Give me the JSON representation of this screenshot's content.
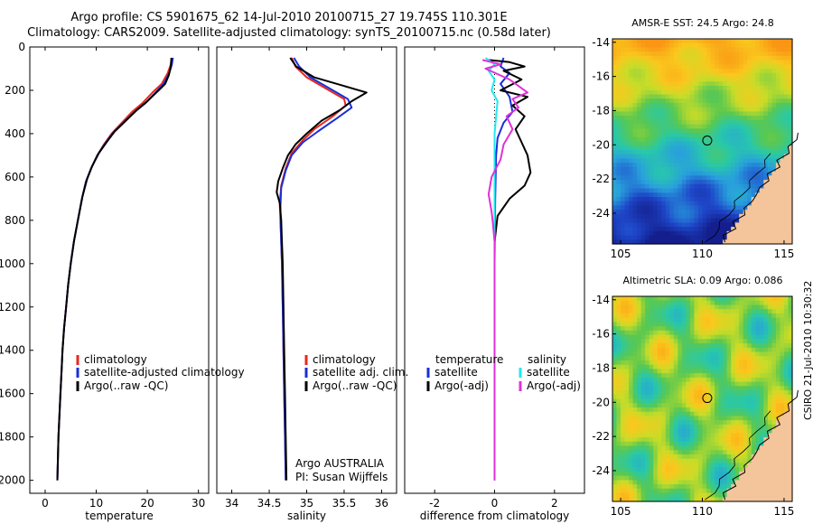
{
  "header": {
    "line1": "Argo profile: CS 5901675_62 14-Jul-2010 20100715_27 19.745S 110.301E",
    "line2": "Climatology: CARS2009. Satellite-adjusted climatology: synTS_20100715.nc (0.58d later)"
  },
  "stamp": "CSIRO 21-Jul-2010 10:30:32",
  "colors": {
    "climatology": "#e8281e",
    "satellite": "#1a2fd8",
    "argo": "#000000",
    "sat_salinity": "#22e8ee",
    "argo_salinity": "#e030d8"
  },
  "chart_data": [
    {
      "type": "line",
      "id": "temp",
      "xlabel": "temperature",
      "ylabel": "",
      "xlim": [
        -3,
        32
      ],
      "ylim": [
        2060,
        0
      ],
      "xticks": [
        0,
        10,
        20,
        30
      ],
      "yticks": [
        0,
        200,
        400,
        600,
        800,
        1000,
        1200,
        1400,
        1600,
        1800,
        2000
      ],
      "legend": [
        "climatology",
        "satellite-adjusted climatology",
        "Argo(..raw -QC)"
      ],
      "series": [
        {
          "name": "climatology",
          "color_key": "climatology",
          "points": [
            [
              24.8,
              50
            ],
            [
              24.6,
              80
            ],
            [
              24.0,
              120
            ],
            [
              22.8,
              170
            ],
            [
              21.0,
              210
            ],
            [
              19.0,
              260
            ],
            [
              17.0,
              300
            ],
            [
              15.0,
              350
            ],
            [
              13.0,
              400
            ],
            [
              11.5,
              450
            ],
            [
              10.2,
              500
            ],
            [
              9.0,
              560
            ],
            [
              8.0,
              620
            ],
            [
              7.2,
              700
            ],
            [
              6.4,
              800
            ],
            [
              5.6,
              900
            ],
            [
              5.0,
              1000
            ],
            [
              4.5,
              1100
            ],
            [
              4.1,
              1200
            ],
            [
              3.7,
              1300
            ],
            [
              3.4,
              1400
            ],
            [
              3.2,
              1500
            ],
            [
              3.0,
              1600
            ],
            [
              2.8,
              1700
            ],
            [
              2.6,
              1800
            ],
            [
              2.5,
              1900
            ],
            [
              2.4,
              2000
            ]
          ]
        },
        {
          "name": "satellite-adjusted climatology",
          "color_key": "satellite",
          "points": [
            [
              25.0,
              50
            ],
            [
              24.8,
              80
            ],
            [
              24.3,
              120
            ],
            [
              23.2,
              170
            ],
            [
              21.6,
              210
            ],
            [
              19.6,
              260
            ],
            [
              17.5,
              300
            ],
            [
              15.3,
              350
            ],
            [
              13.2,
              400
            ],
            [
              11.6,
              450
            ],
            [
              10.2,
              500
            ],
            [
              9.0,
              560
            ],
            [
              8.0,
              620
            ],
            [
              7.2,
              700
            ],
            [
              6.4,
              800
            ],
            [
              5.6,
              900
            ],
            [
              5.0,
              1000
            ],
            [
              4.5,
              1100
            ],
            [
              4.1,
              1200
            ],
            [
              3.7,
              1300
            ],
            [
              3.4,
              1400
            ],
            [
              3.2,
              1500
            ],
            [
              3.0,
              1600
            ],
            [
              2.8,
              1700
            ],
            [
              2.6,
              1800
            ],
            [
              2.5,
              1900
            ],
            [
              2.4,
              2000
            ]
          ]
        },
        {
          "name": "Argo(..raw -QC)",
          "color_key": "argo",
          "points": [
            [
              24.7,
              50
            ],
            [
              24.6,
              90
            ],
            [
              24.2,
              130
            ],
            [
              23.5,
              170
            ],
            [
              22.2,
              200
            ],
            [
              20.0,
              250
            ],
            [
              18.0,
              290
            ],
            [
              15.8,
              340
            ],
            [
              13.6,
              390
            ],
            [
              12.0,
              440
            ],
            [
              10.5,
              490
            ],
            [
              9.2,
              550
            ],
            [
              8.2,
              610
            ],
            [
              7.3,
              690
            ],
            [
              6.5,
              790
            ],
            [
              5.7,
              890
            ],
            [
              5.0,
              1000
            ],
            [
              4.5,
              1100
            ],
            [
              4.1,
              1200
            ],
            [
              3.7,
              1300
            ],
            [
              3.4,
              1400
            ],
            [
              3.2,
              1500
            ],
            [
              3.0,
              1600
            ],
            [
              2.8,
              1700
            ],
            [
              2.6,
              1800
            ],
            [
              2.5,
              1900
            ],
            [
              2.4,
              2000
            ]
          ]
        }
      ]
    },
    {
      "type": "line",
      "id": "salt",
      "xlabel": "salinity",
      "ylabel": "",
      "xlim": [
        33.8,
        36.2
      ],
      "ylim": [
        2060,
        0
      ],
      "xticks": [
        34,
        34.5,
        35,
        35.5,
        36
      ],
      "yticks": [],
      "legend": [
        "climatology",
        "satellite adj. clim.",
        "Argo(..raw -QC)"
      ],
      "notes": [
        "Argo AUSTRALIA",
        "PI: Susan Wijffels"
      ],
      "series": [
        {
          "name": "climatology",
          "color_key": "climatology",
          "points": [
            [
              34.8,
              50
            ],
            [
              34.85,
              90
            ],
            [
              35.0,
              140
            ],
            [
              35.25,
              190
            ],
            [
              35.5,
              240
            ],
            [
              35.52,
              270
            ],
            [
              35.35,
              320
            ],
            [
              35.1,
              380
            ],
            [
              34.95,
              430
            ],
            [
              34.8,
              490
            ],
            [
              34.72,
              560
            ],
            [
              34.66,
              640
            ],
            [
              34.64,
              720
            ],
            [
              34.65,
              800
            ],
            [
              34.66,
              900
            ],
            [
              34.67,
              1000
            ],
            [
              34.68,
              1200
            ],
            [
              34.69,
              1400
            ],
            [
              34.7,
              1600
            ],
            [
              34.71,
              1800
            ],
            [
              34.72,
              2000
            ]
          ]
        },
        {
          "name": "satellite adj. clim.",
          "color_key": "satellite",
          "points": [
            [
              34.83,
              50
            ],
            [
              34.9,
              90
            ],
            [
              35.05,
              140
            ],
            [
              35.3,
              190
            ],
            [
              35.55,
              240
            ],
            [
              35.6,
              280
            ],
            [
              35.4,
              330
            ],
            [
              35.15,
              390
            ],
            [
              34.95,
              440
            ],
            [
              34.8,
              500
            ],
            [
              34.72,
              570
            ],
            [
              34.66,
              650
            ],
            [
              34.65,
              730
            ],
            [
              34.65,
              800
            ],
            [
              34.66,
              900
            ],
            [
              34.67,
              1000
            ],
            [
              34.68,
              1200
            ],
            [
              34.69,
              1400
            ],
            [
              34.7,
              1600
            ],
            [
              34.71,
              1800
            ],
            [
              34.72,
              2000
            ]
          ]
        },
        {
          "name": "Argo(..raw -QC)",
          "color_key": "argo",
          "points": [
            [
              34.78,
              50
            ],
            [
              34.86,
              90
            ],
            [
              35.1,
              140
            ],
            [
              35.5,
              180
            ],
            [
              35.8,
              210
            ],
            [
              35.7,
              230
            ],
            [
              35.6,
              250
            ],
            [
              35.45,
              290
            ],
            [
              35.2,
              340
            ],
            [
              35.0,
              400
            ],
            [
              34.85,
              450
            ],
            [
              34.75,
              500
            ],
            [
              34.68,
              560
            ],
            [
              34.62,
              620
            ],
            [
              34.6,
              670
            ],
            [
              34.64,
              720
            ],
            [
              34.66,
              800
            ],
            [
              34.67,
              900
            ],
            [
              34.68,
              1000
            ],
            [
              34.69,
              1200
            ],
            [
              34.7,
              1400
            ],
            [
              34.71,
              1600
            ],
            [
              34.72,
              1800
            ],
            [
              34.73,
              2000
            ]
          ]
        }
      ]
    },
    {
      "type": "line",
      "id": "diff",
      "xlabel": "difference from climatology",
      "ylabel": "",
      "xlim": [
        -3,
        3
      ],
      "ylim": [
        2060,
        0
      ],
      "xticks": [
        -2,
        0,
        2
      ],
      "yticks": [],
      "legend_temperature_header": "temperature",
      "legend_temperature": [
        "satellite",
        "Argo(-adj)"
      ],
      "legend_salinity_header": "salinity",
      "legend_salinity": [
        "satellite",
        "Argo(-adj)"
      ],
      "series": [
        {
          "name": "temperature satellite",
          "color_key": "satellite",
          "points": [
            [
              0.3,
              50
            ],
            [
              0.2,
              90
            ],
            [
              0.5,
              120
            ],
            [
              0.2,
              170
            ],
            [
              0.5,
              230
            ],
            [
              0.6,
              300
            ],
            [
              0.3,
              350
            ],
            [
              0.1,
              420
            ],
            [
              0.05,
              500
            ],
            [
              0.02,
              700
            ],
            [
              0.0,
              1000
            ],
            [
              0.0,
              1500
            ],
            [
              0.0,
              2000
            ]
          ]
        },
        {
          "name": "temperature Argo(-adj)",
          "color_key": "argo",
          "points": [
            [
              -0.2,
              60
            ],
            [
              0.5,
              70
            ],
            [
              1.0,
              90
            ],
            [
              0.3,
              110
            ],
            [
              0.9,
              150
            ],
            [
              0.2,
              200
            ],
            [
              1.1,
              230
            ],
            [
              0.6,
              270
            ],
            [
              1.0,
              320
            ],
            [
              0.7,
              380
            ],
            [
              0.9,
              440
            ],
            [
              1.1,
              500
            ],
            [
              1.2,
              580
            ],
            [
              1.0,
              640
            ],
            [
              0.5,
              700
            ],
            [
              0.1,
              780
            ],
            [
              0.0,
              900
            ],
            [
              0.0,
              1500
            ],
            [
              0.0,
              2000
            ]
          ]
        },
        {
          "name": "salinity satellite",
          "color_key": "sat_salinity",
          "points": [
            [
              -0.3,
              50
            ],
            [
              0.0,
              80
            ],
            [
              -0.2,
              110
            ],
            [
              0.0,
              150
            ],
            [
              -0.1,
              200
            ],
            [
              0.1,
              250
            ],
            [
              0.05,
              320
            ],
            [
              0.0,
              400
            ],
            [
              0.0,
              600
            ],
            [
              0.0,
              1000
            ],
            [
              0.0,
              2000
            ]
          ]
        },
        {
          "name": "salinity Argo(-adj)",
          "color_key": "argo_salinity",
          "points": [
            [
              -0.4,
              60
            ],
            [
              0.2,
              80
            ],
            [
              -0.3,
              100
            ],
            [
              0.5,
              150
            ],
            [
              1.1,
              210
            ],
            [
              0.6,
              240
            ],
            [
              0.8,
              280
            ],
            [
              0.4,
              320
            ],
            [
              0.6,
              380
            ],
            [
              0.3,
              450
            ],
            [
              0.2,
              520
            ],
            [
              -0.1,
              600
            ],
            [
              -0.2,
              680
            ],
            [
              -0.1,
              760
            ],
            [
              -0.05,
              820
            ],
            [
              0.0,
              900
            ],
            [
              0.0,
              2000
            ]
          ]
        }
      ]
    },
    {
      "type": "heatmap",
      "id": "sst",
      "title": "AMSR-E SST: 24.5 Argo: 24.8",
      "xlim": [
        104.5,
        115.5
      ],
      "ylim": [
        -25.8,
        -13.8
      ],
      "xticks": [
        105,
        110,
        115
      ],
      "yticks": [
        -14,
        -16,
        -18,
        -20,
        -22,
        -24
      ],
      "marker": {
        "lon": 110.3,
        "lat": -19.75
      }
    },
    {
      "type": "heatmap",
      "id": "sla",
      "title": "Altimetric SLA: 0.09 Argo: 0.086",
      "xlim": [
        104.5,
        115.5
      ],
      "ylim": [
        -25.8,
        -13.8
      ],
      "xticks": [
        105,
        110,
        115
      ],
      "yticks": [
        -14,
        -16,
        -18,
        -20,
        -22,
        -24
      ],
      "marker": {
        "lon": 110.3,
        "lat": -19.75
      }
    }
  ]
}
